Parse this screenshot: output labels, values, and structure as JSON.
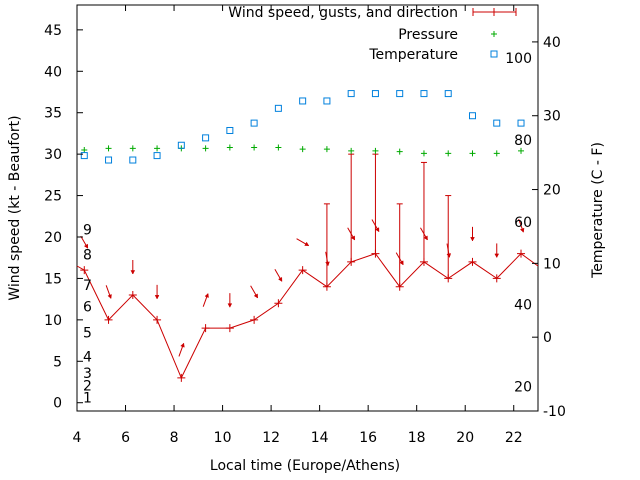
{
  "chart_data": {
    "type": "line",
    "title": "",
    "xlabel": "Local time (Europe/Athens)",
    "ylabel": "Wind speed (kt - Beaufort)",
    "y2label": "Temperature (C - F)",
    "xlim": [
      4,
      23
    ],
    "ylim": [
      -1,
      48
    ],
    "y2lim": [
      -10,
      45
    ],
    "grid": false,
    "legend_position": "top-right",
    "x_ticks": [
      4,
      6,
      8,
      10,
      12,
      14,
      16,
      18,
      20,
      22
    ],
    "y_ticks": [
      0,
      5,
      10,
      15,
      20,
      25,
      30,
      35,
      40,
      45
    ],
    "y2_ticks": [
      -10,
      0,
      10,
      20,
      30,
      40
    ],
    "beaufort_labels": [
      {
        "label": "1",
        "y": 0.6
      },
      {
        "label": "2",
        "y": 2.1
      },
      {
        "label": "3",
        "y": 3.6
      },
      {
        "label": "4",
        "y": 5.6
      },
      {
        "label": "5",
        "y": 8.5
      },
      {
        "label": "6",
        "y": 11.6
      },
      {
        "label": "7",
        "y": 14.2
      },
      {
        "label": "8",
        "y": 17.9
      },
      {
        "label": "9",
        "y": 20.9
      }
    ],
    "fahrenheit_labels": [
      {
        "label": "20",
        "y2": -6.7
      },
      {
        "label": "40",
        "y2": 4.4
      },
      {
        "label": "60",
        "y2": 15.6
      },
      {
        "label": "80",
        "y2": 26.7
      },
      {
        "label": "100",
        "y2": 37.8
      }
    ],
    "series": [
      {
        "name": "Wind speed, gusts, and direction",
        "color": "#cc0000",
        "x": [
          4.0,
          4.3,
          5.3,
          6.3,
          7.3,
          8.3,
          9.3,
          10.3,
          11.3,
          12.3,
          13.3,
          14.3,
          15.3,
          16.3,
          17.3,
          18.3,
          19.3,
          20.3,
          21.3,
          22.3,
          23.0
        ],
        "values": [
          16.5,
          16,
          10,
          13,
          10,
          3,
          9,
          9,
          10,
          12,
          16,
          14,
          17,
          18,
          14,
          17,
          15,
          17,
          15,
          18,
          16.5
        ],
        "gusts": [
          null,
          16,
          10,
          13,
          10,
          3,
          9,
          9,
          10,
          12,
          16,
          24,
          30,
          30,
          24,
          29,
          25,
          17,
          15,
          18,
          null
        ],
        "direction_deg": [
          null,
          330,
          340,
          0,
          0,
          200,
          200,
          0,
          330,
          330,
          300,
          350,
          330,
          330,
          330,
          330,
          350,
          0,
          0,
          340,
          null
        ]
      },
      {
        "name": "Pressure",
        "color": "#00aa00",
        "marker": "plus",
        "x": [
          4.3,
          5.3,
          6.3,
          7.3,
          8.3,
          9.3,
          10.3,
          11.3,
          12.3,
          13.3,
          14.3,
          15.3,
          16.3,
          17.3,
          18.3,
          19.3,
          20.3,
          21.3,
          22.3
        ],
        "values": [
          30.5,
          30.7,
          30.7,
          30.7,
          30.7,
          30.7,
          30.8,
          30.8,
          30.8,
          30.6,
          30.6,
          30.4,
          30.4,
          30.3,
          30.1,
          30.1,
          30.1,
          30.1,
          30.4
        ]
      },
      {
        "name": "Temperature",
        "color": "#0080dd",
        "marker": "square",
        "axis": "y2",
        "x": [
          4.3,
          5.3,
          6.3,
          7.3,
          8.3,
          9.3,
          10.3,
          11.3,
          12.3,
          13.3,
          14.3,
          15.3,
          16.3,
          17.3,
          18.3,
          19.3,
          20.3,
          21.3,
          22.3
        ],
        "values": [
          24.6,
          24,
          24,
          24.6,
          26,
          27,
          28,
          29,
          31,
          32,
          32,
          33,
          33,
          33,
          33,
          33,
          30,
          29,
          29
        ]
      }
    ]
  }
}
